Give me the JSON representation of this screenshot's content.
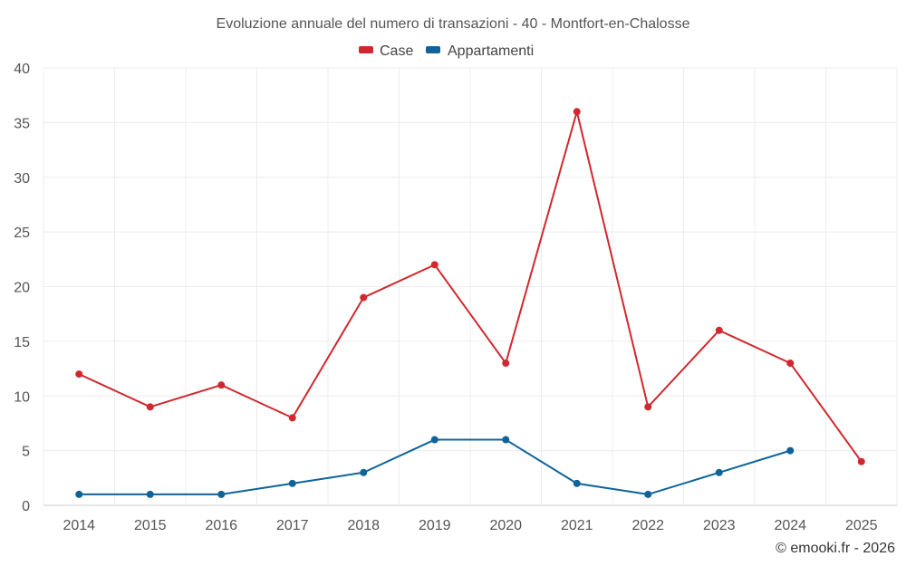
{
  "chart_data": {
    "type": "line",
    "title": "Evoluzione annuale del numero di transazioni - 40 - Montfort-en-Chalosse",
    "x": [
      "2014",
      "2015",
      "2016",
      "2017",
      "2018",
      "2019",
      "2020",
      "2021",
      "2022",
      "2023",
      "2024",
      "2025"
    ],
    "ylim": [
      0,
      40
    ],
    "yticks": [
      0,
      5,
      10,
      15,
      20,
      25,
      30,
      35,
      40
    ],
    "grid": true,
    "legend_position": "top-center",
    "series": [
      {
        "name": "Case",
        "color": "#d0282e",
        "values": [
          12,
          9,
          11,
          8,
          19,
          22,
          13,
          36,
          9,
          16,
          13,
          4
        ]
      },
      {
        "name": "Appartamenti",
        "color": "#0f6399",
        "values": [
          1,
          1,
          1,
          2,
          3,
          6,
          6,
          2,
          1,
          3,
          5,
          null
        ]
      }
    ],
    "credit": "© emooki.fr - 2026"
  }
}
